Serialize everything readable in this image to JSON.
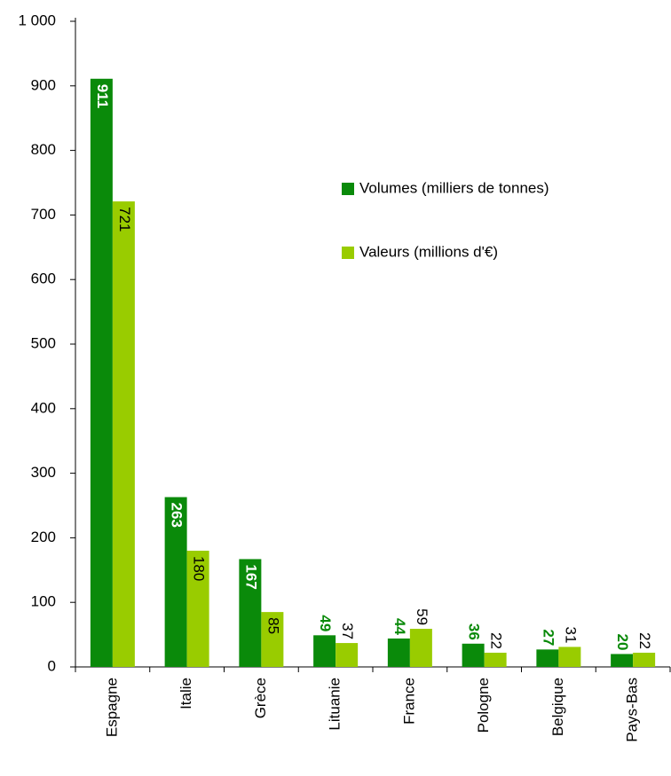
{
  "chart_data": {
    "type": "bar",
    "categories": [
      "Espagne",
      "Italie",
      "Grèce",
      "Lituanie",
      "France",
      "Pologne",
      "Belgique",
      "Pays-Bas"
    ],
    "series": [
      {
        "name": "Volumes (milliers de tonnes)",
        "color": "#0a8a0a",
        "values": [
          911,
          263,
          167,
          49,
          44,
          36,
          27,
          20
        ]
      },
      {
        "name": "Valeurs (millions d'€)",
        "color": "#99cc00",
        "values": [
          721,
          180,
          85,
          37,
          59,
          22,
          31,
          22
        ]
      }
    ],
    "ylim": [
      0,
      1000
    ],
    "yticks": [
      0,
      100,
      200,
      300,
      400,
      500,
      600,
      700,
      800,
      900,
      {
        "value": 1000,
        "label": "1 000"
      }
    ]
  }
}
